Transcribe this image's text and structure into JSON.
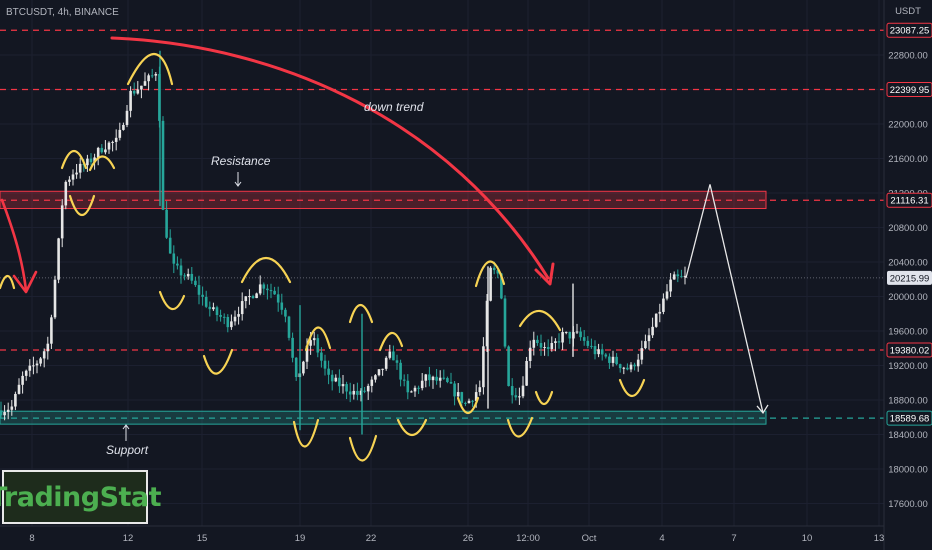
{
  "header": {
    "symbol": "BTCUSDT, 4h, BINANCE"
  },
  "logo": {
    "text": "TradingStat"
  },
  "chart_data": {
    "type": "candlestick",
    "quote_currency": "USDT",
    "x_tick_labels": [
      "8",
      "12",
      "15",
      "19",
      "22",
      "26",
      "12:00",
      "Oct",
      "4",
      "7",
      "10",
      "13"
    ],
    "y_tick_labels": [
      22800,
      22400,
      22000,
      21600,
      21200,
      20800,
      20400,
      20000,
      19600,
      19200,
      18800,
      18400,
      18000,
      17600
    ],
    "ylim": [
      17300,
      23350
    ],
    "levels": [
      {
        "value": 23087.25,
        "label": "23087.25",
        "color": "#f23645"
      },
      {
        "value": 22399.95,
        "label": "22399.95",
        "color": "#f23645"
      },
      {
        "value": 21116.31,
        "label": "21116.31",
        "color": "#f23645"
      },
      {
        "value": 19380.02,
        "label": "19380.02",
        "color": "#f23645"
      },
      {
        "value": 18589.68,
        "label": "18589.68",
        "color": "#26a69a"
      }
    ],
    "last_price": 20215.99,
    "zones": [
      {
        "name": "Resistance",
        "low": 21020,
        "high": 21220,
        "color": "#f23645"
      },
      {
        "name": "Support",
        "low": 18520,
        "high": 18670,
        "color": "#26a69a"
      }
    ],
    "annotations": [
      "down trend",
      "Resistance",
      "Support"
    ],
    "price_path": [
      [
        0,
        18680
      ],
      [
        12,
        18720
      ],
      [
        22,
        19050
      ],
      [
        38,
        19250
      ],
      [
        48,
        19450
      ],
      [
        56,
        20300
      ],
      [
        64,
        21300
      ],
      [
        74,
        21450
      ],
      [
        88,
        21550
      ],
      [
        104,
        21750
      ],
      [
        118,
        21800
      ],
      [
        130,
        22350
      ],
      [
        142,
        22450
      ],
      [
        152,
        22550
      ],
      [
        158,
        22650
      ],
      [
        162,
        21050
      ],
      [
        172,
        20350
      ],
      [
        190,
        20200
      ],
      [
        210,
        19850
      ],
      [
        228,
        19700
      ],
      [
        246,
        19950
      ],
      [
        262,
        20150
      ],
      [
        274,
        20050
      ],
      [
        286,
        19800
      ],
      [
        296,
        19000
      ],
      [
        312,
        19550
      ],
      [
        328,
        19050
      ],
      [
        344,
        18950
      ],
      [
        360,
        18850
      ],
      [
        376,
        19050
      ],
      [
        392,
        19350
      ],
      [
        408,
        18850
      ],
      [
        426,
        19050
      ],
      [
        446,
        19000
      ],
      [
        466,
        18750
      ],
      [
        480,
        18950
      ],
      [
        490,
        20300
      ],
      [
        500,
        20250
      ],
      [
        508,
        18950
      ],
      [
        520,
        18850
      ],
      [
        532,
        19550
      ],
      [
        548,
        19350
      ],
      [
        562,
        19550
      ],
      [
        578,
        19550
      ],
      [
        596,
        19350
      ],
      [
        614,
        19250
      ],
      [
        630,
        19150
      ],
      [
        646,
        19450
      ],
      [
        660,
        19850
      ],
      [
        672,
        20200
      ],
      [
        686,
        20215
      ]
    ],
    "projection": [
      {
        "x": 686,
        "y": 20215.99
      },
      {
        "x": 710,
        "y": 21300
      },
      {
        "x": 763,
        "y": 18650
      }
    ]
  }
}
